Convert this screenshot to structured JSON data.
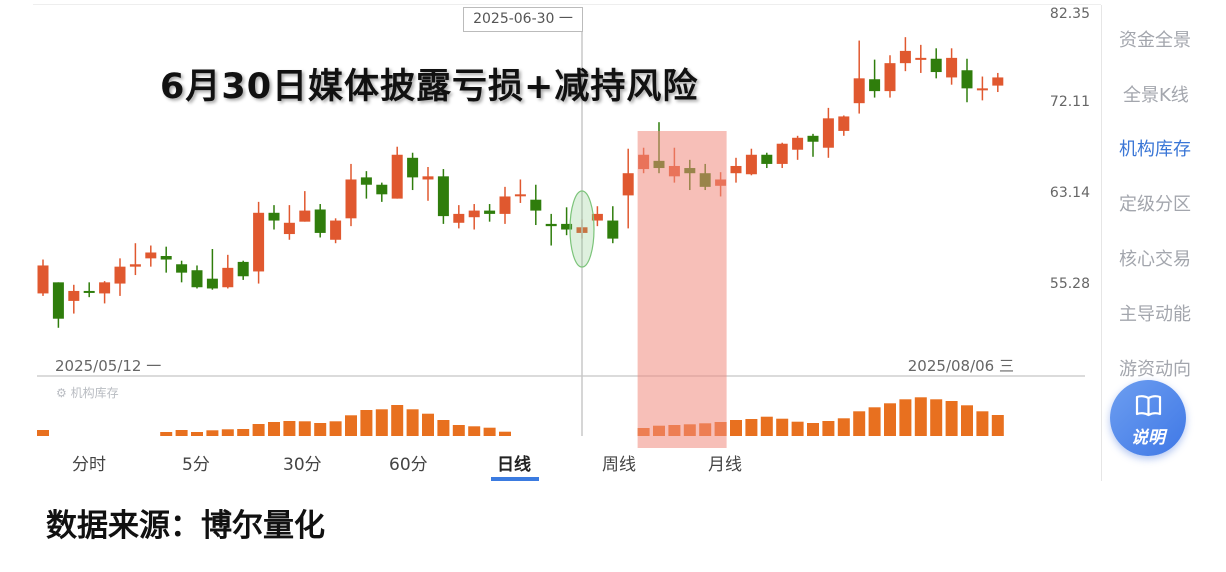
{
  "annotation_title": "6月30日媒体披露亏损+减持风险",
  "crosshair_label": "2025-06-30 一",
  "x_start_label": "2025/05/12 一",
  "x_end_label": "2025/08/06 三",
  "volume_panel_label": "机构库存",
  "footer_source": "数据来源：博尔量化",
  "tabs": [
    {
      "label": "分时"
    },
    {
      "label": "5分"
    },
    {
      "label": "30分"
    },
    {
      "label": "60分"
    },
    {
      "label": "日线",
      "active": true
    },
    {
      "label": "周线"
    },
    {
      "label": "月线"
    }
  ],
  "sidebar": {
    "items": [
      {
        "label": "资金全景"
      },
      {
        "label": "全景K线"
      },
      {
        "label": "机构库存",
        "active": true
      },
      {
        "label": "定级分区"
      },
      {
        "label": "核心交易"
      },
      {
        "label": "主导动能"
      },
      {
        "label": "游资动向"
      }
    ],
    "help_button": {
      "label": "说明",
      "icon": "book-icon"
    }
  },
  "colors": {
    "up": "#e0582f",
    "down": "#2f7d0c",
    "volume": "#e8701f",
    "highlight": "#f08a7e",
    "ellipse": "#7cc47a",
    "accent": "#3a76d6"
  },
  "chart_data": {
    "type": "candlestick",
    "y_scale": "log",
    "y_ticks": [
      82.35,
      72.11,
      63.14,
      55.28
    ],
    "ylim": [
      51.5,
      82.35
    ],
    "x_labels": [
      "2025/05/12 一",
      "2025/08/06 三"
    ],
    "crosshair_index": 35,
    "highlight_ellipse_index": 35,
    "highlight_range": [
      39,
      44
    ],
    "ohlc": [
      [
        54.6,
        57.4,
        54.4,
        56.9
      ],
      [
        55.5,
        55.5,
        51.9,
        52.6
      ],
      [
        54.0,
        55.3,
        53.0,
        54.8
      ],
      [
        54.8,
        55.5,
        54.3,
        54.7
      ],
      [
        54.6,
        55.6,
        53.8,
        55.5
      ],
      [
        55.4,
        57.5,
        54.4,
        56.8
      ],
      [
        56.8,
        58.8,
        56.1,
        57.0
      ],
      [
        57.5,
        58.6,
        56.8,
        58.0
      ],
      [
        57.7,
        58.5,
        56.3,
        57.4
      ],
      [
        57.0,
        57.3,
        55.5,
        56.3
      ],
      [
        56.5,
        56.9,
        55.0,
        55.1
      ],
      [
        55.8,
        58.3,
        54.9,
        55.0
      ],
      [
        55.1,
        57.8,
        55.0,
        56.7
      ],
      [
        57.2,
        57.3,
        55.7,
        56.0
      ],
      [
        56.4,
        62.5,
        55.4,
        61.5
      ],
      [
        61.5,
        62.2,
        60.0,
        60.8
      ],
      [
        59.6,
        62.2,
        59.1,
        60.6
      ],
      [
        60.7,
        63.5,
        60.7,
        61.7
      ],
      [
        61.8,
        62.3,
        59.3,
        59.7
      ],
      [
        59.1,
        61.0,
        58.8,
        60.8
      ],
      [
        61.0,
        66.1,
        60.3,
        64.6
      ],
      [
        64.8,
        65.4,
        62.8,
        64.1
      ],
      [
        64.1,
        64.3,
        62.5,
        63.2
      ],
      [
        62.8,
        67.8,
        62.8,
        67.0
      ],
      [
        66.7,
        67.2,
        63.6,
        64.8
      ],
      [
        64.6,
        65.8,
        62.6,
        64.9
      ],
      [
        64.9,
        65.6,
        60.5,
        61.2
      ],
      [
        60.6,
        62.2,
        60.1,
        61.4
      ],
      [
        61.1,
        62.3,
        60.0,
        61.7
      ],
      [
        61.7,
        62.3,
        60.7,
        61.4
      ],
      [
        61.4,
        63.9,
        60.5,
        63.0
      ],
      [
        63.1,
        64.6,
        62.4,
        63.2
      ],
      [
        62.7,
        64.1,
        60.4,
        61.7
      ],
      [
        60.5,
        61.4,
        58.6,
        60.3
      ],
      [
        60.5,
        62.0,
        59.5,
        60.0
      ],
      [
        59.7,
        60.9,
        59.2,
        60.2
      ],
      [
        60.8,
        62.1,
        60.3,
        61.4
      ],
      [
        60.8,
        62.1,
        58.8,
        59.2
      ],
      [
        63.1,
        67.6,
        60.1,
        65.2
      ],
      [
        65.6,
        67.7,
        65.2,
        67.0
      ],
      [
        66.4,
        70.3,
        65.2,
        65.7
      ],
      [
        64.9,
        67.7,
        64.3,
        65.9
      ],
      [
        65.7,
        66.5,
        63.6,
        65.2
      ],
      [
        65.2,
        66.1,
        63.6,
        63.9
      ],
      [
        64.0,
        65.3,
        63.0,
        64.6
      ],
      [
        65.2,
        66.7,
        64.3,
        65.9
      ],
      [
        65.1,
        67.6,
        65.0,
        67.0
      ],
      [
        67.0,
        67.2,
        65.7,
        66.1
      ],
      [
        66.1,
        68.2,
        65.7,
        68.1
      ],
      [
        67.5,
        68.9,
        66.5,
        68.7
      ],
      [
        68.9,
        69.1,
        66.8,
        68.3
      ],
      [
        67.7,
        71.8,
        66.7,
        70.7
      ],
      [
        69.4,
        71.0,
        68.9,
        70.9
      ],
      [
        72.3,
        79.3,
        71.2,
        75.0
      ],
      [
        74.9,
        77.1,
        72.9,
        73.6
      ],
      [
        73.6,
        77.6,
        72.9,
        76.7
      ],
      [
        76.7,
        79.7,
        75.8,
        78.1
      ],
      [
        77.1,
        78.8,
        75.6,
        77.3
      ],
      [
        77.2,
        78.4,
        75.0,
        75.7
      ],
      [
        75.1,
        78.4,
        74.3,
        77.3
      ],
      [
        75.9,
        77.2,
        72.4,
        73.9
      ],
      [
        73.7,
        75.2,
        72.6,
        73.9
      ],
      [
        74.2,
        75.6,
        73.5,
        75.1
      ]
    ],
    "volume": [
      6,
      null,
      null,
      null,
      null,
      null,
      null,
      null,
      4,
      6,
      4,
      5.7,
      6.7,
      7,
      12,
      14,
      15,
      14.7,
      13,
      14.7,
      20.7,
      26,
      26.7,
      31,
      26.7,
      22.3,
      16,
      11,
      9.7,
      8.3,
      4.3,
      null,
      null,
      null,
      null,
      null,
      null,
      null,
      null,
      8,
      10.3,
      11,
      11.7,
      12.7,
      14,
      16,
      17,
      19.3,
      17.3,
      14.3,
      13,
      15,
      17.7,
      24.7,
      28.7,
      32.7,
      36.7,
      38.7,
      36.7,
      35,
      30.7,
      24.7,
      21
    ]
  }
}
